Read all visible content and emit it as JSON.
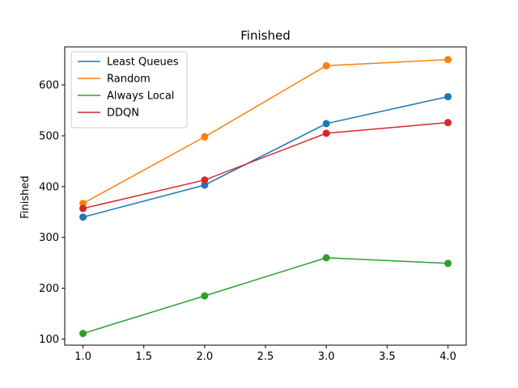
{
  "chart_data": {
    "type": "line",
    "title": "Finished",
    "xlabel": "",
    "ylabel": "Finished",
    "xlim": [
      0.85,
      4.15
    ],
    "ylim": [
      88,
      675
    ],
    "x_ticks": [
      1.0,
      1.5,
      2.0,
      2.5,
      3.0,
      3.5,
      4.0
    ],
    "x_tick_labels": [
      "1.0",
      "1.5",
      "2.0",
      "2.5",
      "3.0",
      "3.5",
      "4.0"
    ],
    "y_ticks": [
      100,
      200,
      300,
      400,
      500,
      600
    ],
    "y_tick_labels": [
      "100",
      "200",
      "300",
      "400",
      "500",
      "600"
    ],
    "grid": false,
    "legend_position": "top-left",
    "x": [
      1.0,
      2.0,
      3.0,
      4.0
    ],
    "series": [
      {
        "name": "Least Queues",
        "color": "#1f77b4",
        "values": [
          340,
          403,
          524,
          577
        ]
      },
      {
        "name": "Random",
        "color": "#ff7f0e",
        "values": [
          367,
          498,
          638,
          650
        ]
      },
      {
        "name": "Always Local",
        "color": "#2ca02c",
        "values": [
          111,
          185,
          260,
          249
        ]
      },
      {
        "name": "DDQN",
        "color": "#d62728",
        "values": [
          357,
          413,
          505,
          526
        ]
      }
    ]
  }
}
